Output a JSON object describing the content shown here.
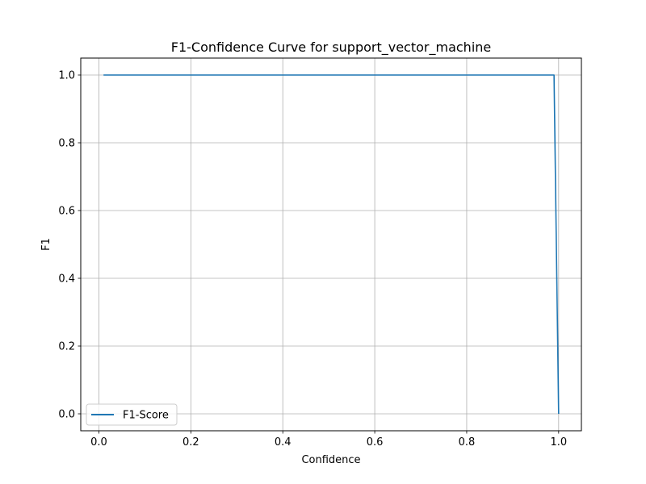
{
  "chart_data": {
    "type": "line",
    "title": "F1-Confidence Curve for support_vector_machine",
    "xlabel": "Confidence",
    "ylabel": "F1",
    "xlim": [
      -0.0395,
      1.0495
    ],
    "ylim": [
      -0.05,
      1.05
    ],
    "xticks": [
      0.0,
      0.2,
      0.4,
      0.6,
      0.8,
      1.0
    ],
    "xtick_labels": [
      "0.0",
      "0.2",
      "0.4",
      "0.6",
      "0.8",
      "1.0"
    ],
    "yticks": [
      0.0,
      0.2,
      0.4,
      0.6,
      0.8,
      1.0
    ],
    "ytick_labels": [
      "0.0",
      "0.2",
      "0.4",
      "0.6",
      "0.8",
      "1.0"
    ],
    "grid": true,
    "legend_position": "lower-left",
    "series": [
      {
        "name": "F1-Score",
        "color": "#1f77b4",
        "x": [
          0.01,
          0.99,
          1.0
        ],
        "y": [
          1.0,
          1.0,
          0.0
        ]
      }
    ]
  }
}
